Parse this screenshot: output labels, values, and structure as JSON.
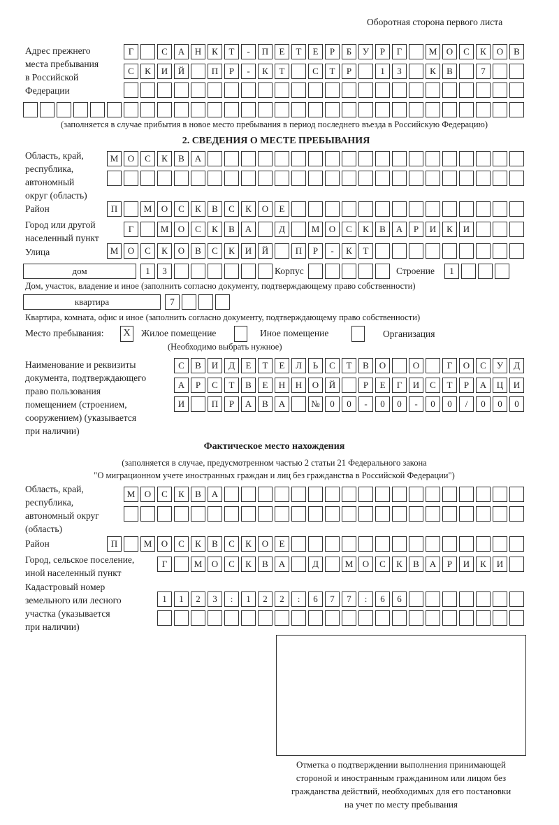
{
  "header": {
    "page_side": "Оборотная сторона первого листа"
  },
  "previous_address": {
    "label": "Адрес прежнего\nместа пребывания\nв Российской\nФедерации",
    "rows": [
      "Г САНКТ-ПЕТЕРБУРГ МОСКОВ",
      "СКИЙ ПР-КТ СТР 13 КВ 7",
      "",
      ""
    ],
    "note": "(заполняется в случае прибытия в новое место пребывания в период последнего въезда в Российскую Федерацию)"
  },
  "stay_place": {
    "title": "2. СВЕДЕНИЯ О МЕСТЕ ПРЕБЫВАНИЯ",
    "region_label": "Область, край,\nреспублика,\nавтономный\nокруг (область)",
    "region_rows": [
      "МОСКВА",
      ""
    ],
    "district_label": "Район",
    "district": "П МОСКВСКОЕ",
    "city_label": "Город или другой\nнаселенный пункт",
    "city": "Г МОСКВА Д МОСКВАРИКИ",
    "street_label": "Улица",
    "street": "МОСКОВСКИЙ ПР-КТ",
    "house_type": "дом",
    "house_number": "13",
    "korpus_label": "Корпус",
    "korpus": "",
    "building_label": "Строение",
    "building": "1",
    "house_note": "Дом, участок, владение и иное (заполнить согласно документу, подтверждающему право собственности)",
    "apartment_type": "квартира",
    "apartment_number": "7",
    "apartment_note": "Квартира, комната, офис и иное (заполнить согласно документу, подтверждающему право собственности)",
    "place_label": "Место пребывания:",
    "options": [
      {
        "label": "Жилое помещение",
        "mark": "X",
        "checked": true
      },
      {
        "label": "Иное помещение",
        "mark": "",
        "checked": false
      },
      {
        "label": "Организация",
        "mark": "",
        "checked": false
      }
    ],
    "choose_note": "(Необходимо выбрать нужное)",
    "document_label": "Наименование и реквизиты\nдокумента, подтверждающего\nправо пользования\nпомещением (строением,\nсооружением) (указывается\nпри наличии)",
    "document_rows": [
      "СВИДЕТЕЛЬСТВО О ГОСУД",
      "АРСТВЕННОЙ РЕГИСТРАЦИ",
      "И ПРАВА №00-00-00/000"
    ]
  },
  "actual_place": {
    "title": "Фактическое место нахождения",
    "note_line1": "(заполняется в случае, предусмотренном частью 2 статьи 21 Федерального закона",
    "note_line2": "\"О миграционном учете иностранных граждан и лиц без гражданства в Российской Федерации\")",
    "region_label": "Область, край,\nреспублика,\nавтономный округ\n(область)",
    "region_rows": [
      "МОСКВА",
      ""
    ],
    "district_label": "Район",
    "district": "П МОСКВСКОЕ",
    "city_label": "Город, сельское поселение,\nиной населенный пункт",
    "city": "Г МОСКВА Д МОСКВАРИКИ",
    "cadastral_label": "Кадастровый номер\nземельного или лесного\nучастка (указывается\nпри наличии)",
    "cadastral_rows": [
      "1123:122:677:66",
      ""
    ]
  },
  "confirmation": {
    "caption": "Отметка о подтверждении выполнения принимающей\nстороной и иностранным гражданином или лицом без\nгражданства действий, необходимых для его постановки\nна учет по месту пребывания"
  }
}
